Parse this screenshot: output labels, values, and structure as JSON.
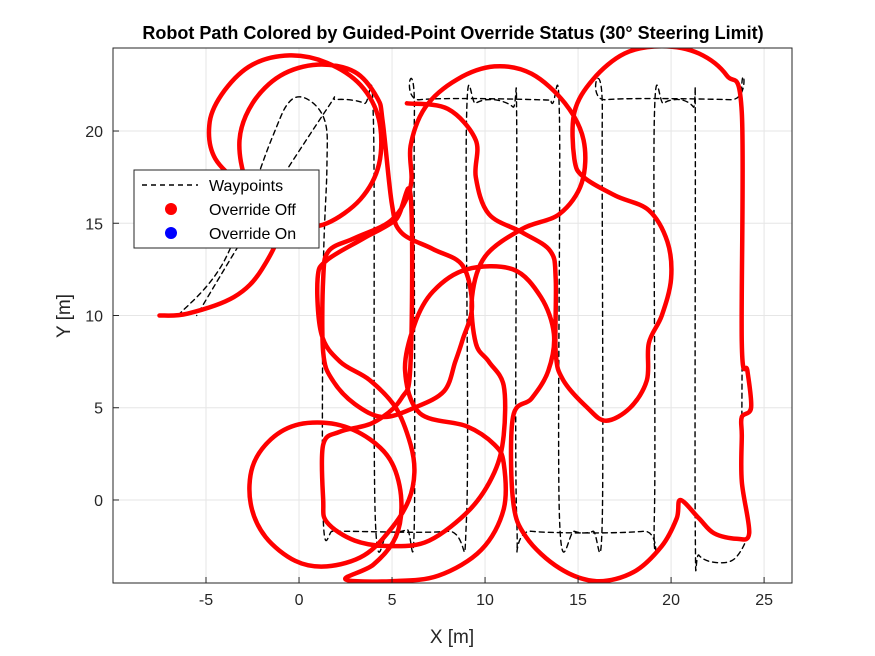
{
  "chart_data": {
    "type": "line",
    "title": "Robot Path Colored by Guided-Point Override Status (30° Steering Limit)",
    "xlabel": "X [m]",
    "ylabel": "Y [m]",
    "xlim": [
      -10,
      26.5
    ],
    "ylim": [
      -4.5,
      24.5
    ],
    "xticks": [
      -5,
      0,
      5,
      10,
      15,
      20,
      25
    ],
    "yticks": [
      0,
      5,
      10,
      15,
      20
    ],
    "xtick_labels": [
      "-5",
      "0",
      "5",
      "10",
      "15",
      "20",
      "25"
    ],
    "ytick_labels": [
      "0",
      "5",
      "10",
      "15",
      "20"
    ],
    "grid": true,
    "legend_position": "upper-left",
    "legend": [
      {
        "label": "Waypoints",
        "style": "dashed-line",
        "color": "#000000"
      },
      {
        "label": "Override Off",
        "style": "marker",
        "color": "#ff0000"
      },
      {
        "label": "Override On",
        "style": "marker",
        "color": "#0000ff"
      }
    ],
    "series": [
      {
        "name": "Waypoints",
        "style": "dashed",
        "color": "#000000",
        "points": [
          [
            -6.5,
            10
          ],
          [
            -4,
            13
          ],
          [
            -1.5,
            19.5
          ],
          [
            -0.5,
            21.6
          ],
          [
            0.5,
            21.7
          ],
          [
            1.4,
            20.5
          ],
          [
            1.5,
            18
          ],
          [
            1.3,
            12
          ],
          [
            1.3,
            -1
          ],
          [
            1.8,
            -1.7
          ],
          [
            2.5,
            -1.7
          ],
          [
            8,
            -1.7
          ],
          [
            9,
            -1
          ],
          [
            9,
            20.6
          ],
          [
            9.5,
            21.5
          ],
          [
            10.5,
            21.7
          ],
          [
            11.5,
            21.3
          ],
          [
            11.7,
            20.5
          ],
          [
            11.7,
            -1
          ],
          [
            12.5,
            -1.7
          ],
          [
            18.5,
            -1.7
          ],
          [
            19.1,
            -1
          ],
          [
            19.1,
            20.6
          ],
          [
            19.6,
            21.5
          ],
          [
            20.5,
            21.7
          ],
          [
            21.2,
            21.3
          ],
          [
            21.3,
            20.5
          ],
          [
            21.3,
            -1.8
          ],
          [
            21.5,
            -3
          ],
          [
            22.5,
            -3.4
          ],
          [
            23.5,
            -3.1
          ],
          [
            24.2,
            -1.5
          ],
          [
            23.8,
            0.5
          ],
          [
            23.8,
            3
          ],
          [
            23.8,
            21.5
          ],
          [
            23.2,
            21.7
          ],
          [
            16.5,
            21.7
          ],
          [
            16.3,
            21
          ],
          [
            16.3,
            -1
          ],
          [
            15.8,
            -1.7
          ],
          [
            14.8,
            -1.7
          ],
          [
            14,
            -1
          ],
          [
            14,
            20.6
          ],
          [
            13.6,
            21.5
          ],
          [
            12.8,
            21.7
          ],
          [
            6.5,
            21.7
          ],
          [
            6.2,
            21
          ],
          [
            6.2,
            -1
          ],
          [
            5.8,
            -1.6
          ],
          [
            4.8,
            -1.7
          ],
          [
            4.1,
            -1
          ],
          [
            4.0,
            20.6
          ],
          [
            3.5,
            21.5
          ],
          [
            2.0,
            21.7
          ],
          [
            1.5,
            21.2
          ],
          [
            -2.5,
            15
          ],
          [
            -5.5,
            10
          ]
        ]
      },
      {
        "name": "Override Off",
        "style": "solid",
        "color": "#ff0000",
        "points": [
          [
            -7.5,
            10
          ],
          [
            -6,
            10.1
          ],
          [
            -3.5,
            11
          ],
          [
            -2,
            12.5
          ],
          [
            -1,
            15
          ],
          [
            -2.5,
            16.5
          ],
          [
            -4.5,
            18.5
          ],
          [
            -4.8,
            20.5
          ],
          [
            -4,
            22.2
          ],
          [
            -2.5,
            23.6
          ],
          [
            -0.5,
            24.1
          ],
          [
            1.5,
            23.7
          ],
          [
            3.3,
            22.5
          ],
          [
            4.3,
            20.6
          ],
          [
            4.3,
            18.2
          ],
          [
            3.3,
            16.3
          ],
          [
            1.5,
            15
          ],
          [
            0,
            14.9
          ],
          [
            -1.5,
            15.6
          ],
          [
            -2.8,
            17.2
          ],
          [
            -3.2,
            19.5
          ],
          [
            -2.5,
            21.5
          ],
          [
            -1,
            23
          ],
          [
            1,
            23.6
          ],
          [
            3,
            23.2
          ],
          [
            4.2,
            21.8
          ],
          [
            4.5,
            20.5
          ],
          [
            5,
            16
          ],
          [
            5.5,
            14.5
          ],
          [
            7.2,
            13.6
          ],
          [
            8.8,
            12.7
          ],
          [
            9.3,
            10.5
          ],
          [
            8.8,
            8.7
          ],
          [
            8.4,
            7.5
          ],
          [
            7.8,
            5.9
          ],
          [
            6.2,
            5
          ],
          [
            4.5,
            4.5
          ],
          [
            3,
            5.2
          ],
          [
            1.8,
            6.5
          ],
          [
            1.3,
            8
          ],
          [
            1.3,
            12
          ],
          [
            1.6,
            13.5
          ],
          [
            3,
            14.2
          ],
          [
            5,
            15.2
          ],
          [
            6,
            17
          ],
          [
            6,
            19.2
          ],
          [
            6.8,
            21.3
          ],
          [
            8.5,
            22.8
          ],
          [
            10.5,
            23.5
          ],
          [
            12.5,
            23.1
          ],
          [
            14.3,
            21.5
          ],
          [
            15.3,
            19.5
          ],
          [
            15.2,
            17.2
          ],
          [
            14,
            15.5
          ],
          [
            12,
            14.7
          ],
          [
            10,
            13.2
          ],
          [
            9.3,
            11
          ],
          [
            9.5,
            8.5
          ],
          [
            10.2,
            7.5
          ],
          [
            11,
            6.2
          ],
          [
            11,
            3.5
          ],
          [
            10.5,
            1.5
          ],
          [
            9.2,
            -0.5
          ],
          [
            7,
            -2.2
          ],
          [
            5,
            -2.5
          ],
          [
            3,
            -2.2
          ],
          [
            1.5,
            -1.2
          ],
          [
            1.3,
            0
          ],
          [
            1.3,
            3
          ],
          [
            2.2,
            3.7
          ],
          [
            4,
            4.2
          ],
          [
            5.5,
            5.5
          ],
          [
            6,
            7.5
          ],
          [
            6,
            16.5
          ],
          [
            5.2,
            15.2
          ],
          [
            3.5,
            14.2
          ],
          [
            1.5,
            13
          ],
          [
            1,
            12
          ],
          [
            1.2,
            9
          ],
          [
            2.2,
            7.5
          ],
          [
            3.8,
            6.5
          ],
          [
            5.2,
            5
          ],
          [
            6,
            3
          ],
          [
            6.2,
            1.5
          ],
          [
            5.9,
            0
          ],
          [
            5,
            -1.5
          ],
          [
            3.5,
            -3
          ],
          [
            1.5,
            -3.6
          ],
          [
            -0.2,
            -3.3
          ],
          [
            -1.8,
            -2
          ],
          [
            -2.6,
            -0.2
          ],
          [
            -2.5,
            1.8
          ],
          [
            -1.5,
            3.3
          ],
          [
            0,
            4.1
          ],
          [
            2,
            4.1
          ],
          [
            3.8,
            3.3
          ],
          [
            5,
            2
          ],
          [
            5.5,
            0
          ],
          [
            5.2,
            -2
          ],
          [
            4,
            -3.5
          ],
          [
            2.5,
            -4.3
          ],
          [
            5,
            -4.4
          ],
          [
            7.5,
            -4.1
          ],
          [
            9.8,
            -2.7
          ],
          [
            11,
            -0.5
          ],
          [
            11,
            2
          ],
          [
            10.5,
            3
          ],
          [
            9,
            4
          ],
          [
            6.5,
            4.7
          ],
          [
            5.7,
            7
          ],
          [
            6.2,
            9.5
          ],
          [
            7.2,
            11.3
          ],
          [
            9,
            12.5
          ],
          [
            11.5,
            12.5
          ],
          [
            13,
            11
          ],
          [
            13.7,
            9
          ],
          [
            13.4,
            7
          ],
          [
            12.5,
            5.5
          ],
          [
            11.5,
            4.5
          ],
          [
            11.5,
            0
          ],
          [
            12.2,
            -2
          ],
          [
            14,
            -3.7
          ],
          [
            16,
            -4.4
          ],
          [
            18,
            -3.9
          ],
          [
            19.5,
            -2.5
          ],
          [
            20.3,
            -1
          ],
          [
            20.5,
            0
          ],
          [
            21.5,
            -1
          ],
          [
            22.3,
            -1.8
          ],
          [
            23.5,
            -2.1
          ],
          [
            24.2,
            -1.8
          ],
          [
            23.8,
            1
          ],
          [
            23.8,
            3.5
          ],
          [
            23.8,
            4.5
          ],
          [
            24.3,
            5
          ],
          [
            24.1,
            7
          ],
          [
            23.8,
            8.5
          ],
          [
            23.8,
            21
          ],
          [
            23,
            23
          ],
          [
            21.5,
            24.2
          ],
          [
            19.5,
            24.6
          ],
          [
            17.5,
            24.2
          ],
          [
            15.8,
            22.8
          ],
          [
            14.8,
            21
          ],
          [
            14.8,
            18.5
          ],
          [
            15.3,
            17.5
          ],
          [
            17,
            16.5
          ],
          [
            18.8,
            15.7
          ],
          [
            19.8,
            14
          ],
          [
            20,
            12
          ],
          [
            19.5,
            10
          ],
          [
            18.8,
            8.5
          ],
          [
            18.7,
            6.5
          ],
          [
            17.8,
            5
          ],
          [
            16.5,
            4.3
          ],
          [
            15.5,
            5
          ],
          [
            14.2,
            6.5
          ],
          [
            13.8,
            8
          ],
          [
            13.8,
            12
          ],
          [
            13.5,
            13.5
          ],
          [
            12,
            14.5
          ],
          [
            10.2,
            15.5
          ],
          [
            9.5,
            17.5
          ],
          [
            9.5,
            19.5
          ],
          [
            8,
            21.2
          ],
          [
            5.8,
            21.5
          ]
        ]
      }
    ]
  }
}
